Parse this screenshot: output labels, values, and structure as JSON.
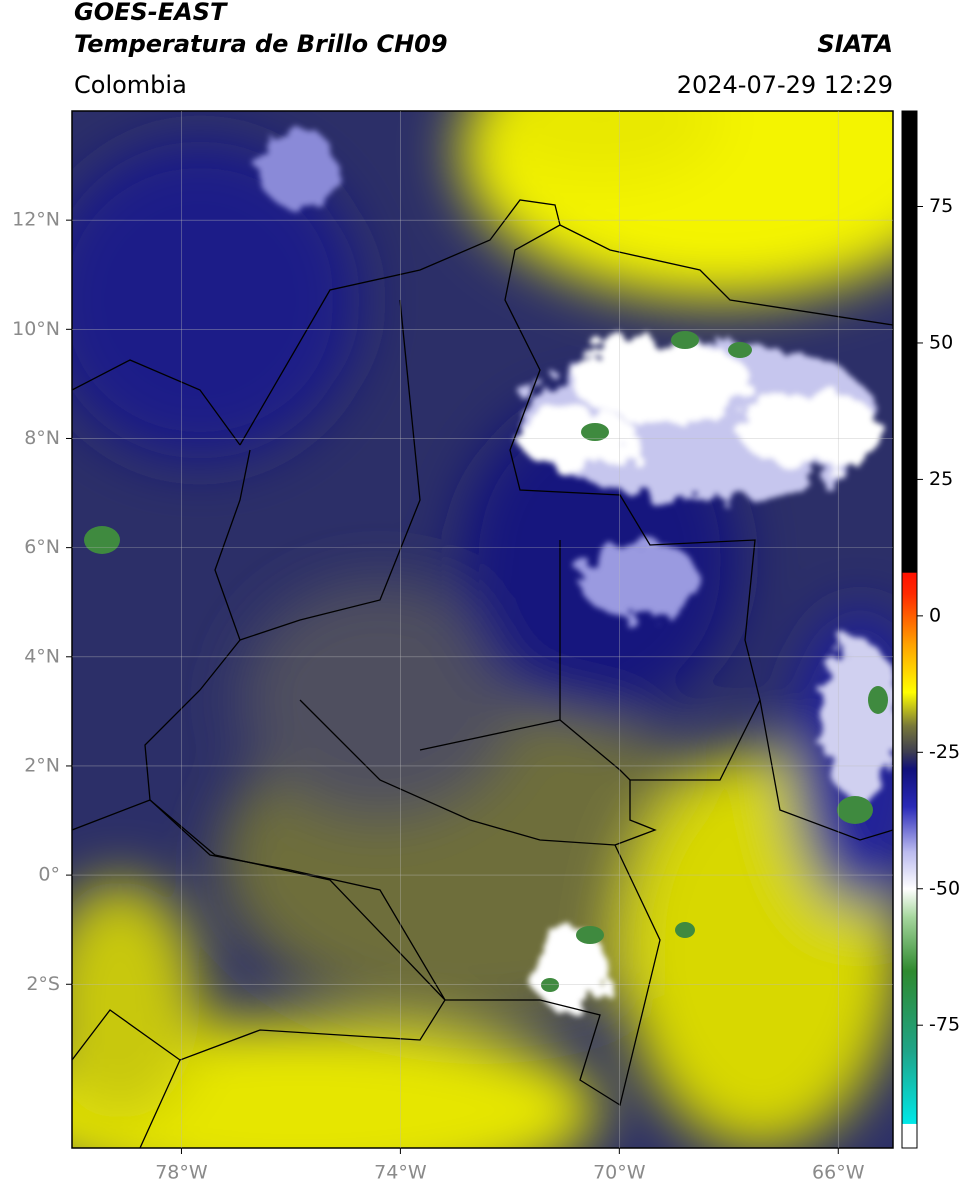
{
  "header": {
    "title": "GOES-EAST",
    "subtitle": "Temperatura de Brillo CH09",
    "region": "Colombia",
    "source": "SIATA",
    "datetime": "2024-07-29 12:29"
  },
  "chart_data": {
    "type": "map",
    "xlim": [
      -80,
      -65
    ],
    "ylim": [
      -5,
      14
    ],
    "xticks": [
      {
        "value": -78,
        "label": "78°W"
      },
      {
        "value": -74,
        "label": "74°W"
      },
      {
        "value": -70,
        "label": "70°W"
      },
      {
        "value": -66,
        "label": "66°W"
      }
    ],
    "yticks": [
      {
        "value": 12,
        "label": "12°N"
      },
      {
        "value": 10,
        "label": "10°N"
      },
      {
        "value": 8,
        "label": "8°N"
      },
      {
        "value": 6,
        "label": "6°N"
      },
      {
        "value": 4,
        "label": "4°N"
      },
      {
        "value": 2,
        "label": "2°N"
      },
      {
        "value": 0,
        "label": "0°"
      },
      {
        "value": -2,
        "label": "2°S"
      }
    ],
    "grid": true,
    "colorbar": {
      "lim": [
        -97.5,
        92.5
      ],
      "ticks": [
        75,
        50,
        25,
        0,
        -25,
        -50,
        -75
      ],
      "stops": [
        {
          "value": -97.5,
          "color": "#ffffff"
        },
        {
          "value": -93,
          "color": "#ffffff"
        },
        {
          "value": -93,
          "color": "#00e8e8"
        },
        {
          "value": -80,
          "color": "#1fa58a"
        },
        {
          "value": -65,
          "color": "#2f8a2f"
        },
        {
          "value": -55,
          "color": "#a8d8a0"
        },
        {
          "value": -50,
          "color": "#ffffff"
        },
        {
          "value": -43,
          "color": "#b8b8ee"
        },
        {
          "value": -35,
          "color": "#2a2ab8"
        },
        {
          "value": -28,
          "color": "#10107a"
        },
        {
          "value": -25,
          "color": "#3c3c52"
        },
        {
          "value": -20,
          "color": "#7a7a38"
        },
        {
          "value": -14,
          "color": "#ffff00"
        },
        {
          "value": -5,
          "color": "#ffa000"
        },
        {
          "value": 4,
          "color": "#ff2a00"
        },
        {
          "value": 8,
          "color": "#ff1000"
        },
        {
          "value": 8,
          "color": "#000000"
        },
        {
          "value": 92.5,
          "color": "#000000"
        }
      ]
    }
  }
}
